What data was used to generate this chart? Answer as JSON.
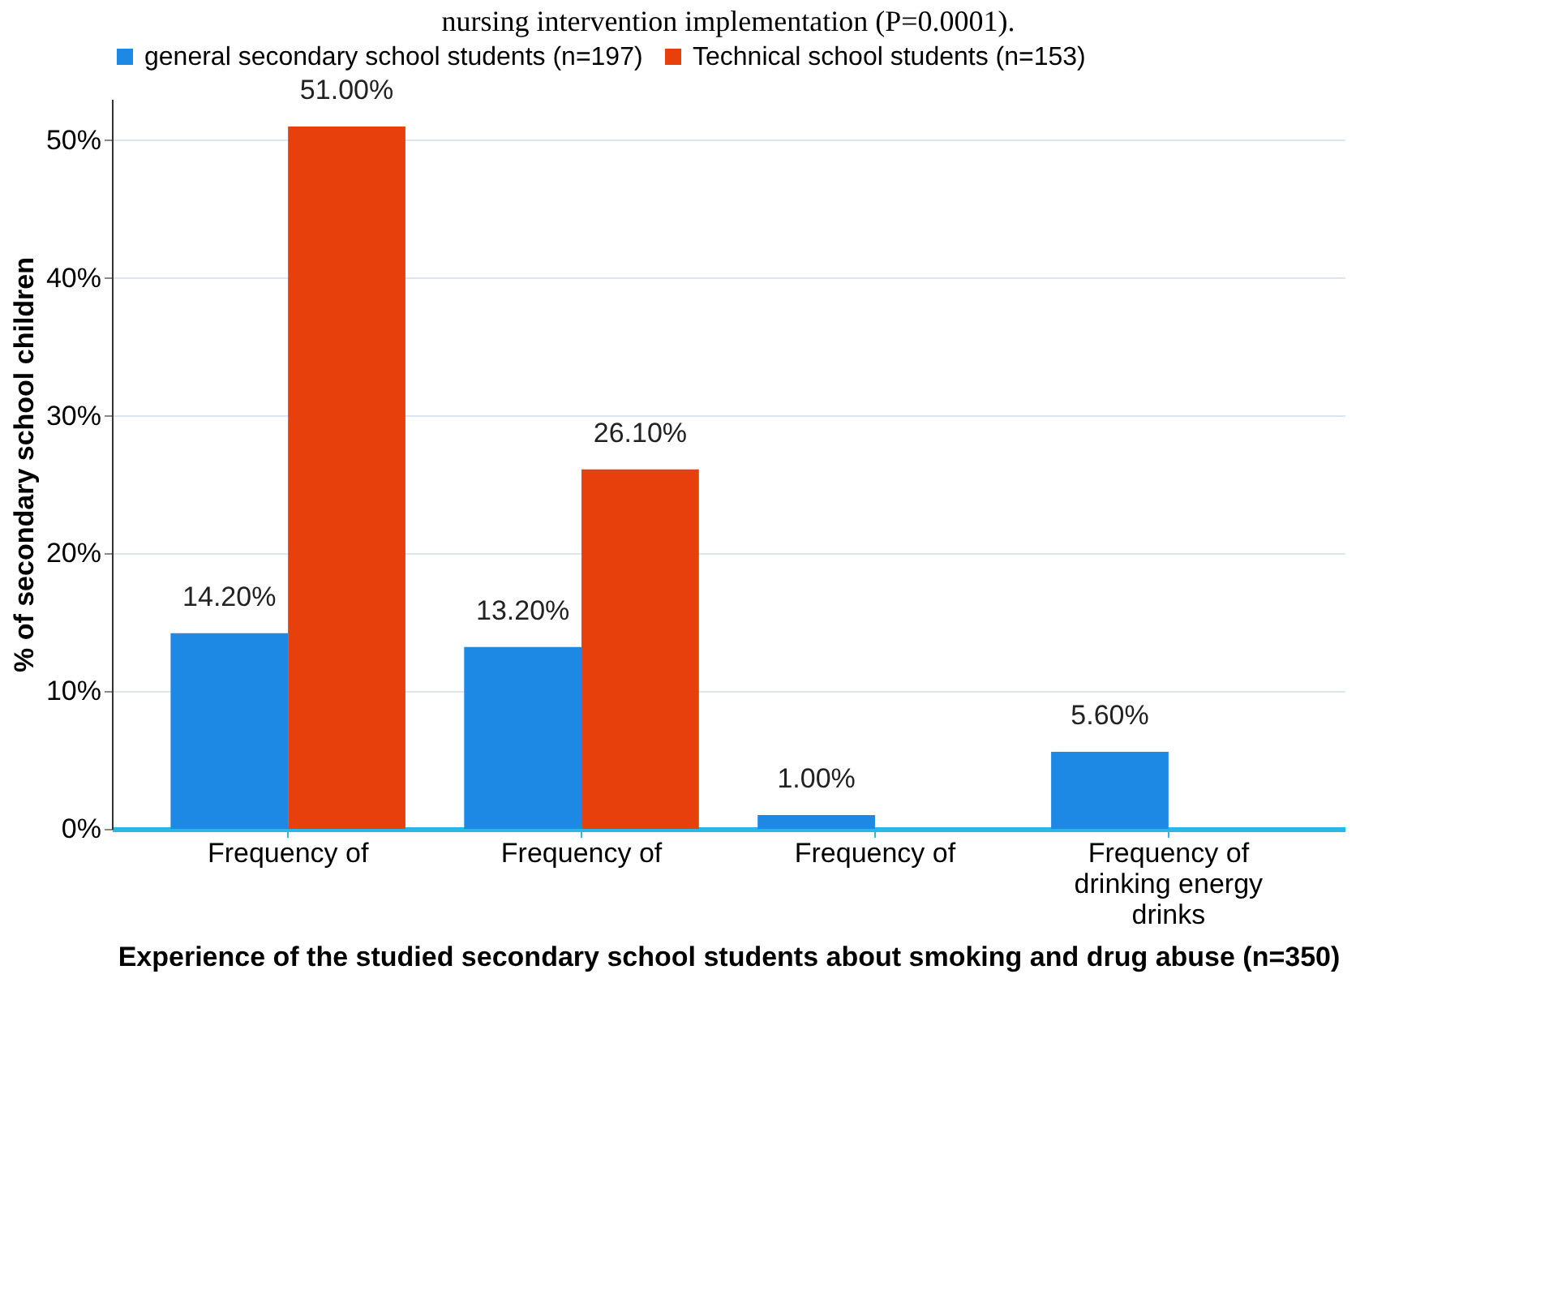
{
  "chart_data": {
    "type": "bar",
    "annotations": [
      "nursing intervention implementation (P=0.0001)."
    ],
    "xlabel": "Experience of the studied secondary school students about smoking and drug abuse (n=350)",
    "ylabel": "% of secondary school children",
    "categories": [
      "Frequency of",
      "Frequency of",
      "Frequency of",
      "Frequency of drinking energy drinks"
    ],
    "series": [
      {
        "name": "general secondary school students (n=197)",
        "color": "#1e88e5",
        "values": [
          14.2,
          13.2,
          1.0,
          5.6
        ],
        "value_labels": [
          "14.20%",
          "13.20%",
          "1.00%",
          "5.60%"
        ]
      },
      {
        "name": "Technical school students (n=153)",
        "color": "#e8400c",
        "values": [
          51.0,
          26.1,
          null,
          null
        ],
        "value_labels": [
          "51.00%",
          "26.10%",
          null,
          null
        ]
      }
    ],
    "ylim": [
      0,
      53
    ],
    "yticks": [
      {
        "value": 0,
        "label": "0%"
      },
      {
        "value": 10,
        "label": "10%"
      },
      {
        "value": 20,
        "label": "20%"
      },
      {
        "value": 30,
        "label": "30%"
      },
      {
        "value": 40,
        "label": "40%"
      },
      {
        "value": 50,
        "label": "50%"
      }
    ],
    "grid": "y",
    "legend": "top"
  }
}
